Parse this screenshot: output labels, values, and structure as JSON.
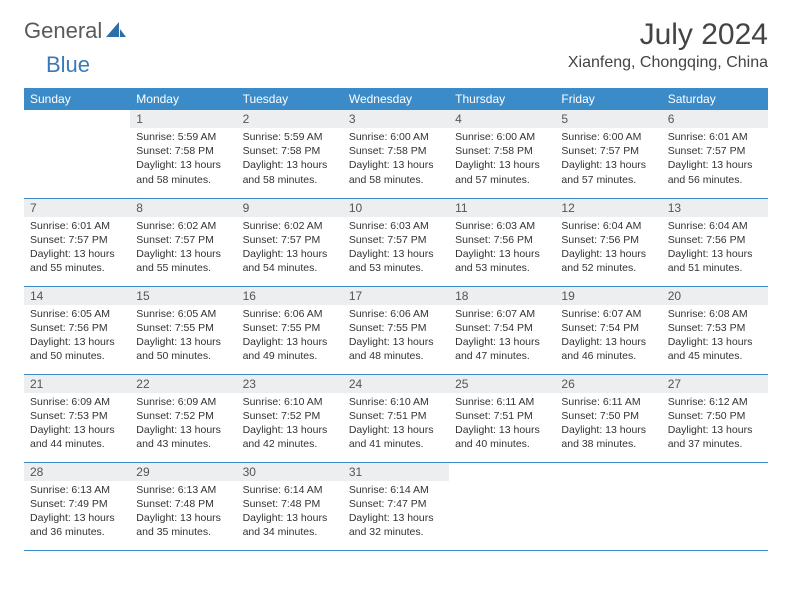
{
  "brand": {
    "general": "General",
    "blue": "Blue"
  },
  "title": "July 2024",
  "location": "Xianfeng, Chongqing, China",
  "colors": {
    "header_bg": "#3b8bc9",
    "header_text": "#ffffff",
    "daynum_bg": "#eceef0",
    "border": "#3b8bc9",
    "logo_gray": "#5a5a5a",
    "logo_blue": "#3a7ab8",
    "page_bg": "#ffffff"
  },
  "daysOfWeek": [
    "Sunday",
    "Monday",
    "Tuesday",
    "Wednesday",
    "Thursday",
    "Friday",
    "Saturday"
  ],
  "weeks": [
    [
      {
        "n": "",
        "empty": true
      },
      {
        "n": "1",
        "sunrise": "5:59 AM",
        "sunset": "7:58 PM",
        "daylight": "13 hours and 58 minutes."
      },
      {
        "n": "2",
        "sunrise": "5:59 AM",
        "sunset": "7:58 PM",
        "daylight": "13 hours and 58 minutes."
      },
      {
        "n": "3",
        "sunrise": "6:00 AM",
        "sunset": "7:58 PM",
        "daylight": "13 hours and 58 minutes."
      },
      {
        "n": "4",
        "sunrise": "6:00 AM",
        "sunset": "7:58 PM",
        "daylight": "13 hours and 57 minutes."
      },
      {
        "n": "5",
        "sunrise": "6:00 AM",
        "sunset": "7:57 PM",
        "daylight": "13 hours and 57 minutes."
      },
      {
        "n": "6",
        "sunrise": "6:01 AM",
        "sunset": "7:57 PM",
        "daylight": "13 hours and 56 minutes."
      }
    ],
    [
      {
        "n": "7",
        "sunrise": "6:01 AM",
        "sunset": "7:57 PM",
        "daylight": "13 hours and 55 minutes."
      },
      {
        "n": "8",
        "sunrise": "6:02 AM",
        "sunset": "7:57 PM",
        "daylight": "13 hours and 55 minutes."
      },
      {
        "n": "9",
        "sunrise": "6:02 AM",
        "sunset": "7:57 PM",
        "daylight": "13 hours and 54 minutes."
      },
      {
        "n": "10",
        "sunrise": "6:03 AM",
        "sunset": "7:57 PM",
        "daylight": "13 hours and 53 minutes."
      },
      {
        "n": "11",
        "sunrise": "6:03 AM",
        "sunset": "7:56 PM",
        "daylight": "13 hours and 53 minutes."
      },
      {
        "n": "12",
        "sunrise": "6:04 AM",
        "sunset": "7:56 PM",
        "daylight": "13 hours and 52 minutes."
      },
      {
        "n": "13",
        "sunrise": "6:04 AM",
        "sunset": "7:56 PM",
        "daylight": "13 hours and 51 minutes."
      }
    ],
    [
      {
        "n": "14",
        "sunrise": "6:05 AM",
        "sunset": "7:56 PM",
        "daylight": "13 hours and 50 minutes."
      },
      {
        "n": "15",
        "sunrise": "6:05 AM",
        "sunset": "7:55 PM",
        "daylight": "13 hours and 50 minutes."
      },
      {
        "n": "16",
        "sunrise": "6:06 AM",
        "sunset": "7:55 PM",
        "daylight": "13 hours and 49 minutes."
      },
      {
        "n": "17",
        "sunrise": "6:06 AM",
        "sunset": "7:55 PM",
        "daylight": "13 hours and 48 minutes."
      },
      {
        "n": "18",
        "sunrise": "6:07 AM",
        "sunset": "7:54 PM",
        "daylight": "13 hours and 47 minutes."
      },
      {
        "n": "19",
        "sunrise": "6:07 AM",
        "sunset": "7:54 PM",
        "daylight": "13 hours and 46 minutes."
      },
      {
        "n": "20",
        "sunrise": "6:08 AM",
        "sunset": "7:53 PM",
        "daylight": "13 hours and 45 minutes."
      }
    ],
    [
      {
        "n": "21",
        "sunrise": "6:09 AM",
        "sunset": "7:53 PM",
        "daylight": "13 hours and 44 minutes."
      },
      {
        "n": "22",
        "sunrise": "6:09 AM",
        "sunset": "7:52 PM",
        "daylight": "13 hours and 43 minutes."
      },
      {
        "n": "23",
        "sunrise": "6:10 AM",
        "sunset": "7:52 PM",
        "daylight": "13 hours and 42 minutes."
      },
      {
        "n": "24",
        "sunrise": "6:10 AM",
        "sunset": "7:51 PM",
        "daylight": "13 hours and 41 minutes."
      },
      {
        "n": "25",
        "sunrise": "6:11 AM",
        "sunset": "7:51 PM",
        "daylight": "13 hours and 40 minutes."
      },
      {
        "n": "26",
        "sunrise": "6:11 AM",
        "sunset": "7:50 PM",
        "daylight": "13 hours and 38 minutes."
      },
      {
        "n": "27",
        "sunrise": "6:12 AM",
        "sunset": "7:50 PM",
        "daylight": "13 hours and 37 minutes."
      }
    ],
    [
      {
        "n": "28",
        "sunrise": "6:13 AM",
        "sunset": "7:49 PM",
        "daylight": "13 hours and 36 minutes."
      },
      {
        "n": "29",
        "sunrise": "6:13 AM",
        "sunset": "7:48 PM",
        "daylight": "13 hours and 35 minutes."
      },
      {
        "n": "30",
        "sunrise": "6:14 AM",
        "sunset": "7:48 PM",
        "daylight": "13 hours and 34 minutes."
      },
      {
        "n": "31",
        "sunrise": "6:14 AM",
        "sunset": "7:47 PM",
        "daylight": "13 hours and 32 minutes."
      },
      {
        "n": "",
        "empty": true
      },
      {
        "n": "",
        "empty": true
      },
      {
        "n": "",
        "empty": true
      }
    ]
  ],
  "labels": {
    "sunrise": "Sunrise:",
    "sunset": "Sunset:",
    "daylight": "Daylight:"
  }
}
